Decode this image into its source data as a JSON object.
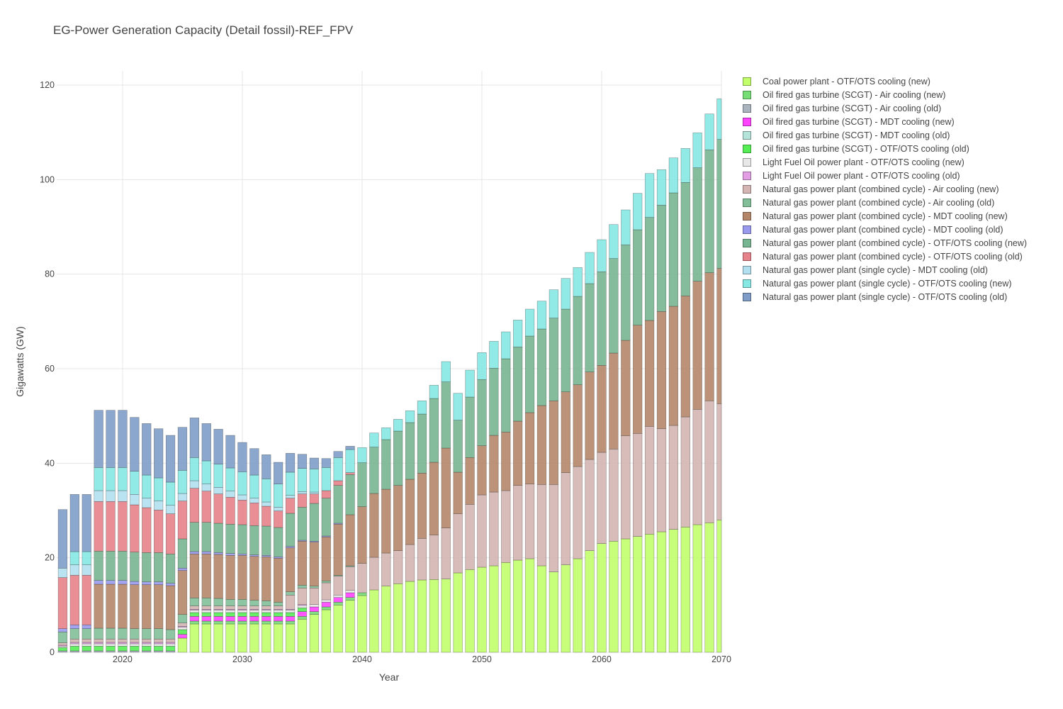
{
  "chart_data": {
    "type": "bar",
    "stacked": true,
    "title": "EG-Power Generation Capacity (Detail fossil)-REF_FPV",
    "xlabel": "Year",
    "ylabel": "Gigawatts (GW)",
    "xlim": [
      2015,
      2070
    ],
    "ylim": [
      0,
      123
    ],
    "x_ticks": [
      2020,
      2030,
      2040,
      2050,
      2060,
      2070
    ],
    "y_ticks": [
      0,
      20,
      40,
      60,
      80,
      100,
      120
    ],
    "legend_position": "right",
    "categories": [
      2015,
      2016,
      2017,
      2018,
      2019,
      2020,
      2021,
      2022,
      2023,
      2024,
      2025,
      2026,
      2027,
      2028,
      2029,
      2030,
      2031,
      2032,
      2033,
      2034,
      2035,
      2036,
      2037,
      2038,
      2039,
      2040,
      2041,
      2042,
      2043,
      2044,
      2045,
      2046,
      2047,
      2048,
      2049,
      2050,
      2051,
      2052,
      2053,
      2054,
      2055,
      2056,
      2057,
      2058,
      2059,
      2060,
      2061,
      2062,
      2063,
      2064,
      2065,
      2066,
      2067,
      2068,
      2069,
      2070
    ],
    "series": [
      {
        "name": "Coal power plant - OTF/OTS cooling (new)",
        "color": "#c2ff6b",
        "values": [
          0,
          0,
          0,
          0,
          0,
          0,
          0,
          0,
          0,
          0,
          3,
          6,
          6,
          6,
          6,
          6,
          6,
          6,
          6,
          6,
          7,
          8,
          9,
          10,
          11,
          12,
          13.2,
          14,
          14.5,
          15,
          15.3,
          15.4,
          15.5,
          16.8,
          17.5,
          18,
          18.3,
          19,
          19.5,
          19.8,
          18.3,
          17,
          18.5,
          19.8,
          21.5,
          23,
          23.5,
          24,
          24.5,
          25,
          25.5,
          26,
          26.5,
          27,
          27.4,
          28
        ]
      },
      {
        "name": "Oil fired gas turbine (SCGT) - Air cooling (new)",
        "color": "#77dd77",
        "values": [
          0,
          0,
          0,
          0,
          0,
          0,
          0,
          0,
          0,
          0,
          0,
          0.6,
          0.6,
          0.6,
          0.6,
          0.6,
          0.6,
          0.6,
          0.6,
          0.6,
          0.6,
          0.6,
          0.6,
          0.6,
          0.6,
          0.6,
          0,
          0,
          0,
          0,
          0,
          0,
          0,
          0,
          0,
          0,
          0,
          0,
          0,
          0,
          0,
          0,
          0,
          0,
          0,
          0,
          0,
          0,
          0,
          0,
          0,
          0,
          0,
          0,
          0,
          0
        ]
      },
      {
        "name": "Oil fired gas turbine (SCGT) - Air cooling (old)",
        "color": "#a9b4bf",
        "values": [
          0.3,
          0.3,
          0.3,
          0.3,
          0.3,
          0.3,
          0.3,
          0.3,
          0.3,
          0.3,
          0,
          0,
          0,
          0,
          0,
          0,
          0,
          0,
          0,
          0,
          0,
          0,
          0,
          0,
          0,
          0,
          0,
          0,
          0,
          0,
          0,
          0,
          0,
          0,
          0,
          0,
          0,
          0,
          0,
          0,
          0,
          0,
          0,
          0,
          0,
          0,
          0,
          0,
          0,
          0,
          0,
          0,
          0,
          0,
          0,
          0
        ]
      },
      {
        "name": "Oil fired gas turbine (SCGT) - MDT cooling (new)",
        "color": "#ff44ff",
        "values": [
          0,
          0,
          0,
          0,
          0,
          0,
          0,
          0,
          0,
          0,
          0.8,
          1,
          1,
          1,
          1,
          1,
          1,
          1,
          1,
          1,
          1,
          1,
          1,
          1,
          1,
          0,
          0,
          0,
          0,
          0,
          0,
          0,
          0,
          0,
          0,
          0,
          0,
          0,
          0,
          0,
          0,
          0,
          0,
          0,
          0,
          0,
          0,
          0,
          0,
          0,
          0,
          0,
          0,
          0,
          0,
          0
        ]
      },
      {
        "name": "Oil fired gas turbine (SCGT) - MDT cooling (old)",
        "color": "#b4e4d9",
        "values": [
          0,
          0,
          0,
          0,
          0,
          0,
          0,
          0,
          0,
          0,
          0,
          0,
          0,
          0,
          0,
          0,
          0,
          0,
          0,
          0,
          0,
          0,
          0,
          0,
          0,
          0,
          0,
          0,
          0,
          0,
          0,
          0,
          0,
          0,
          0,
          0,
          0,
          0,
          0,
          0,
          0,
          0,
          0,
          0,
          0,
          0,
          0,
          0,
          0,
          0,
          0,
          0,
          0,
          0,
          0,
          0
        ]
      },
      {
        "name": "Oil fired gas turbine (SCGT) - OTF/OTS cooling (old)",
        "color": "#55ee55",
        "values": [
          0.7,
          1,
          1,
          1,
          1,
          1,
          1,
          1,
          1,
          1,
          1,
          0.8,
          0.8,
          0.8,
          0.8,
          0.8,
          0.8,
          0.8,
          0.8,
          0.8,
          0.8,
          0,
          0,
          0,
          0,
          0,
          0,
          0,
          0,
          0,
          0,
          0,
          0,
          0,
          0,
          0,
          0,
          0,
          0,
          0,
          0,
          0,
          0,
          0,
          0,
          0,
          0,
          0,
          0,
          0,
          0,
          0,
          0,
          0,
          0,
          0
        ]
      },
      {
        "name": "Light Fuel Oil power plant - OTF/OTS cooling (new)",
        "color": "#e8e8e8",
        "values": [
          0.3,
          0.5,
          0.5,
          0.5,
          0.5,
          0.5,
          0.5,
          0.5,
          0.5,
          0.5,
          0.5,
          0.5,
          0.5,
          0.5,
          0.5,
          0.5,
          0.5,
          0.5,
          0.5,
          0.5,
          0.5,
          0.5,
          0.5,
          0.5,
          0.5,
          0,
          0,
          0,
          0,
          0,
          0,
          0,
          0,
          0,
          0,
          0,
          0,
          0,
          0,
          0,
          0,
          0,
          0,
          0,
          0,
          0,
          0,
          0,
          0,
          0,
          0,
          0,
          0,
          0,
          0,
          0
        ]
      },
      {
        "name": "Light Fuel Oil power plant - OTF/OTS cooling (old)",
        "color": "#e39fe3",
        "values": [
          0.2,
          0.3,
          0.3,
          0.3,
          0.3,
          0.3,
          0.3,
          0.3,
          0.3,
          0.3,
          0.2,
          0.2,
          0.2,
          0.2,
          0.2,
          0.2,
          0.2,
          0.2,
          0.2,
          0.2,
          0.2,
          0,
          0,
          0,
          0,
          0,
          0,
          0,
          0,
          0,
          0,
          0,
          0,
          0,
          0,
          0,
          0,
          0,
          0,
          0,
          0,
          0,
          0,
          0,
          0,
          0,
          0,
          0,
          0,
          0,
          0,
          0,
          0,
          0,
          0,
          0
        ]
      },
      {
        "name": "Natural gas power plant (combined cycle) - Air cooling (new)",
        "color": "#d4b5b3",
        "values": [
          0.5,
          0.7,
          0.7,
          0.7,
          0.7,
          0.7,
          0.7,
          0.7,
          0.7,
          0.7,
          0.7,
          0.7,
          0.7,
          0.7,
          0.7,
          0.7,
          0.7,
          0.7,
          0.7,
          3,
          3.5,
          3.5,
          3.6,
          4,
          5,
          6.2,
          6.9,
          7,
          7,
          7.8,
          8.8,
          9.4,
          10.8,
          12.5,
          13.8,
          15.3,
          15.6,
          15.2,
          15.8,
          15.8,
          17.2,
          18.5,
          19.5,
          19.5,
          19.3,
          19.3,
          19.5,
          21.8,
          21.8,
          22.8,
          21.8,
          22,
          23.3,
          24.4,
          25.8,
          24.6
        ]
      },
      {
        "name": "Natural gas power plant (combined cycle) - Air cooling (old)",
        "color": "#82bf98",
        "values": [
          2.3,
          2.2,
          2.2,
          2.3,
          2.3,
          2.3,
          2.2,
          2.2,
          2.2,
          2,
          1.8,
          1.7,
          1.7,
          1.6,
          1.4,
          1.4,
          1.2,
          1.1,
          0.8,
          0.7,
          0.6,
          0.4,
          0.4,
          0.2,
          0.2,
          0,
          0,
          0,
          0,
          0,
          0,
          0,
          0,
          0,
          0,
          0,
          0,
          0,
          0,
          0,
          0,
          0,
          0,
          0,
          0,
          0,
          0,
          0,
          0,
          0,
          0,
          0,
          0,
          0,
          0,
          0
        ]
      },
      {
        "name": "Natural gas power plant (combined cycle) - MDT cooling (new)",
        "color": "#b5876a",
        "values": [
          0,
          0,
          0,
          9.3,
          9.3,
          9.3,
          9.3,
          9.3,
          9.3,
          9.3,
          9.3,
          9.3,
          9.3,
          9.3,
          9.3,
          9.3,
          9.3,
          9.3,
          9.3,
          9.3,
          9.3,
          9.3,
          9.3,
          10.8,
          10.8,
          12,
          13.5,
          13.5,
          13.8,
          13.8,
          13.8,
          15.4,
          16.9,
          8.8,
          9.9,
          10.4,
          12,
          12.4,
          13.6,
          15.1,
          16.7,
          17.7,
          17.1,
          17.3,
          18.5,
          18.4,
          20.3,
          20.2,
          22.9,
          22.4,
          24.8,
          25.2,
          25.6,
          27.1,
          27.1,
          28.6
        ]
      },
      {
        "name": "Natural gas power plant (combined cycle) - MDT cooling (old)",
        "color": "#9999ee",
        "values": [
          0.7,
          0.8,
          0.8,
          0.8,
          0.8,
          0.8,
          0.7,
          0.6,
          0.6,
          0.5,
          0.5,
          0.5,
          0.5,
          0.4,
          0.4,
          0.3,
          0.3,
          0.3,
          0.3,
          0.3,
          0.2,
          0.2,
          0.2,
          0.2,
          0,
          0,
          0,
          0,
          0,
          0,
          0,
          0,
          0,
          0,
          0,
          0,
          0,
          0,
          0,
          0,
          0,
          0,
          0,
          0,
          0,
          0,
          0,
          0,
          0,
          0,
          0,
          0,
          0,
          0,
          0,
          0
        ]
      },
      {
        "name": "Natural gas power plant (combined cycle) - OTF/OTS cooling (new)",
        "color": "#78b691",
        "values": [
          0,
          0,
          0,
          6.2,
          6.2,
          6.2,
          6.2,
          6.2,
          6.2,
          6.2,
          6.2,
          6.2,
          6.2,
          6.2,
          6.2,
          6.2,
          6.2,
          6.2,
          6.2,
          7,
          7,
          8,
          8,
          8,
          8.5,
          9.3,
          9.8,
          10.5,
          11.5,
          12,
          12.5,
          13.5,
          14,
          11,
          12.8,
          14,
          14.2,
          15.5,
          15.7,
          16.2,
          16.2,
          17.5,
          17.5,
          18.7,
          18.7,
          19.8,
          20,
          20.2,
          20.2,
          21.8,
          22.5,
          24,
          24,
          24,
          26,
          27.3
        ]
      },
      {
        "name": "Natural gas power plant (combined cycle) - OTF/OTS cooling (old)",
        "color": "#e8828a",
        "values": [
          10.8,
          10.5,
          10.5,
          10.5,
          10.5,
          10.5,
          10,
          9.5,
          9,
          8.5,
          8,
          7.2,
          6.6,
          6.2,
          5.7,
          5.2,
          4.8,
          4.2,
          3.5,
          3.2,
          2.8,
          2,
          1.6,
          1,
          0.4,
          0,
          0,
          0,
          0,
          0,
          0,
          0,
          0,
          0,
          0,
          0,
          0,
          0,
          0,
          0,
          0,
          0,
          0,
          0,
          0,
          0,
          0,
          0,
          0,
          0,
          0,
          0,
          0,
          0,
          0,
          0
        ]
      },
      {
        "name": "Natural gas power plant (single cycle) - MDT cooling (old)",
        "color": "#b3e0f0",
        "values": [
          2,
          2.2,
          2.2,
          2.3,
          2.3,
          2.3,
          2.2,
          2,
          1.9,
          1.8,
          1.6,
          1.6,
          1.5,
          1.4,
          1.3,
          1.1,
          1,
          0.9,
          0.8,
          0.6,
          0.5,
          0.4,
          0,
          0,
          0,
          0,
          0,
          0,
          0,
          0,
          0,
          0,
          0,
          0,
          0,
          0,
          0,
          0,
          0,
          0,
          0,
          0,
          0,
          0,
          0,
          0,
          0,
          0,
          0,
          0,
          0,
          0,
          0,
          0,
          0,
          0
        ]
      },
      {
        "name": "Natural gas power plant (single cycle) - OTF/OTS cooling (new)",
        "color": "#85e8e3",
        "values": [
          0,
          2.8,
          2.8,
          4.9,
          4.9,
          4.9,
          4.9,
          4.9,
          4.9,
          4.9,
          4.9,
          4.9,
          4.9,
          4.9,
          4.9,
          4.9,
          4.9,
          4.9,
          4.9,
          4.9,
          4.9,
          4.9,
          4.9,
          4.9,
          4.9,
          3.2,
          3,
          2.5,
          2.5,
          2.5,
          2.8,
          2.8,
          4.3,
          5.7,
          5.7,
          5.7,
          5.7,
          5.7,
          5.7,
          5.7,
          5.9,
          6,
          6.5,
          6.1,
          6.6,
          6.8,
          7.2,
          7.4,
          7.7,
          9.3,
          7.5,
          7.4,
          7.2,
          7.4,
          7.6,
          8.6
        ]
      },
      {
        "name": "Natural gas power plant (single cycle) - OTF/OTS cooling (old)",
        "color": "#7f9dc8",
        "values": [
          12.4,
          12.1,
          12.1,
          12.1,
          12.1,
          12.1,
          11.4,
          10.9,
          10.4,
          9.9,
          9.1,
          8.4,
          7.9,
          7.4,
          6.9,
          6.2,
          5.6,
          5.1,
          4.6,
          4,
          3,
          2.3,
          1.9,
          1.3,
          0.7,
          0,
          0,
          0,
          0,
          0,
          0,
          0,
          0,
          0,
          0,
          0,
          0,
          0,
          0,
          0,
          0,
          0,
          0,
          0,
          0,
          0,
          0,
          0,
          0,
          0,
          0,
          0,
          0,
          0,
          0,
          0
        ]
      }
    ]
  }
}
